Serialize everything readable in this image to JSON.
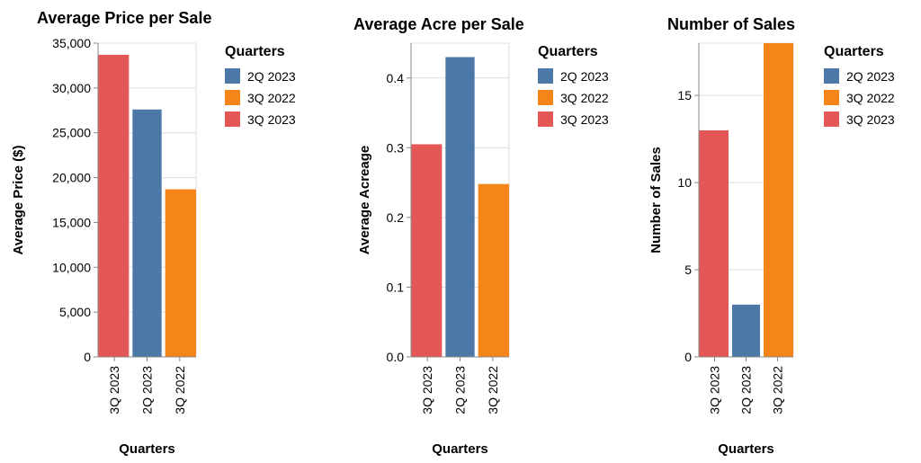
{
  "chart_data": [
    {
      "type": "bar",
      "title": "Average Price per Sale",
      "xlabel": "Quarters",
      "ylabel": "Average Price ($)",
      "categories": [
        "3Q 2023",
        "2Q 2023",
        "3Q 2022"
      ],
      "values": [
        33700,
        27600,
        18700
      ],
      "colors": [
        "#e45756",
        "#4c78a8",
        "#f58518"
      ],
      "ylim": [
        0,
        35000
      ],
      "yticks": [
        0,
        5000,
        10000,
        15000,
        20000,
        25000,
        30000,
        35000
      ],
      "ytick_labels": [
        "0",
        "5,000",
        "10,000",
        "15,000",
        "20,000",
        "25,000",
        "30,000",
        "35,000"
      ],
      "grid": true,
      "legend": {
        "title": "Quarters",
        "position": "right",
        "items": [
          {
            "label": "2Q 2023",
            "color": "#4c78a8"
          },
          {
            "label": "3Q 2022",
            "color": "#f58518"
          },
          {
            "label": "3Q 2023",
            "color": "#e45756"
          }
        ]
      }
    },
    {
      "type": "bar",
      "title": "Average Acre per Sale",
      "xlabel": "Quarters",
      "ylabel": "Average Acreage",
      "categories": [
        "3Q 2023",
        "2Q 2023",
        "3Q 2022"
      ],
      "values": [
        0.305,
        0.43,
        0.248
      ],
      "colors": [
        "#e45756",
        "#4c78a8",
        "#f58518"
      ],
      "ylim": [
        0,
        0.45
      ],
      "yticks": [
        0,
        0.1,
        0.2,
        0.3,
        0.4
      ],
      "ytick_labels": [
        "0.0",
        "0.1",
        "0.2",
        "0.3",
        "0.4"
      ],
      "grid": true,
      "legend": {
        "title": "Quarters",
        "position": "right",
        "items": [
          {
            "label": "2Q 2023",
            "color": "#4c78a8"
          },
          {
            "label": "3Q 2022",
            "color": "#f58518"
          },
          {
            "label": "3Q 2023",
            "color": "#e45756"
          }
        ]
      }
    },
    {
      "type": "bar",
      "title": "Number of Sales",
      "xlabel": "Quarters",
      "ylabel": "Number of Sales",
      "categories": [
        "3Q 2023",
        "2Q 2023",
        "3Q 2022"
      ],
      "values": [
        13,
        3,
        18
      ],
      "colors": [
        "#e45756",
        "#4c78a8",
        "#f58518"
      ],
      "ylim": [
        0,
        18
      ],
      "yticks": [
        0,
        5,
        10,
        15
      ],
      "ytick_labels": [
        "0",
        "5",
        "10",
        "15"
      ],
      "grid": true,
      "legend": {
        "title": "Quarters",
        "position": "right",
        "items": [
          {
            "label": "2Q 2023",
            "color": "#4c78a8"
          },
          {
            "label": "3Q 2022",
            "color": "#f58518"
          },
          {
            "label": "3Q 2023",
            "color": "#e45756"
          }
        ]
      }
    }
  ]
}
